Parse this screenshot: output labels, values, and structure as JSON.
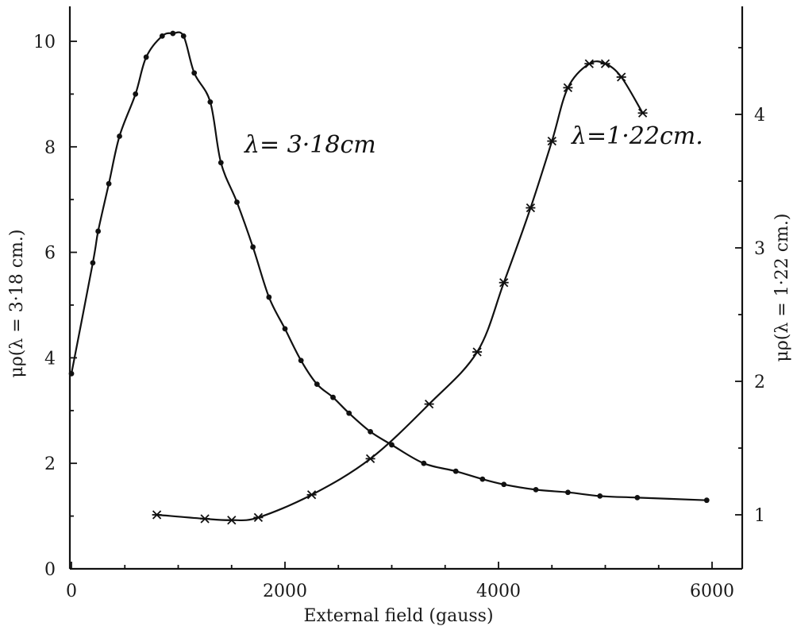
{
  "chart_data": {
    "type": "line",
    "xlabel": "External field (gauss)",
    "ylabel_left": "μρ(λ = 3·18 cm.)",
    "ylabel_right": "μρ(λ = 1·22 cm.)",
    "xlim": [
      0,
      6300
    ],
    "ylim_left": [
      0,
      10.8
    ],
    "ylim_right": [
      0.5,
      4.9
    ],
    "x_ticks": [
      0,
      2000,
      4000,
      6000
    ],
    "x_tick_labels": [
      "0",
      "2000",
      "4000",
      "6000"
    ],
    "y_left_ticks": [
      0,
      2,
      4,
      6,
      8,
      10
    ],
    "y_left_tick_labels": [
      "0",
      "2",
      "4",
      "6",
      "8",
      "10"
    ],
    "y_right_ticks": [
      1,
      2,
      3,
      4
    ],
    "y_right_tick_labels": [
      "1",
      "2",
      "3",
      "4"
    ],
    "series": [
      {
        "name": "λ= 3·18cm",
        "axis": "left",
        "marker": "dot",
        "x": [
          0,
          200,
          250,
          350,
          450,
          600,
          700,
          850,
          950,
          1050,
          1150,
          1300,
          1400,
          1550,
          1700,
          1850,
          2000,
          2150,
          2300,
          2450,
          2600,
          2800,
          3000,
          3300,
          3600,
          3850,
          4050,
          4350,
          4650,
          4950,
          5300,
          5950
        ],
        "y": [
          3.7,
          5.8,
          6.4,
          7.3,
          8.2,
          9.0,
          9.7,
          10.1,
          10.15,
          10.1,
          9.4,
          8.85,
          7.7,
          6.95,
          6.1,
          5.15,
          4.55,
          3.95,
          3.5,
          3.25,
          2.95,
          2.6,
          2.35,
          2.0,
          1.85,
          1.7,
          1.6,
          1.5,
          1.45,
          1.38,
          1.35,
          1.3
        ]
      },
      {
        "name": "λ=1·22cm.",
        "axis": "right",
        "marker": "star",
        "x": [
          800,
          1250,
          1500,
          1750,
          2250,
          2800,
          3350,
          3800,
          4050,
          4300,
          4500,
          4650,
          4850,
          5000,
          5150,
          5350
        ],
        "y": [
          1.0,
          0.97,
          0.96,
          0.98,
          1.15,
          1.42,
          1.83,
          2.22,
          2.74,
          3.3,
          3.8,
          4.2,
          4.38,
          4.38,
          4.28,
          4.01
        ]
      }
    ],
    "grid": false,
    "legend": "none"
  }
}
